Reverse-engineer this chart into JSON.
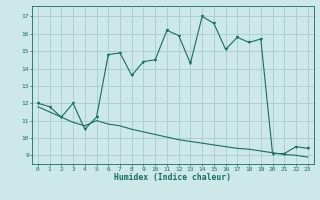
{
  "xlabel": "Humidex (Indice chaleur)",
  "ylabel": "",
  "bg_color": "#cce8e8",
  "grid_color": "#aacccc",
  "line_color": "#1a6b60",
  "xlim": [
    -0.5,
    23.5
  ],
  "ylim": [
    8.5,
    17.6
  ],
  "xticks": [
    0,
    1,
    2,
    3,
    4,
    5,
    6,
    7,
    8,
    9,
    10,
    11,
    12,
    13,
    14,
    15,
    16,
    17,
    18,
    19,
    20,
    21,
    22,
    23
  ],
  "yticks": [
    9,
    10,
    11,
    12,
    13,
    14,
    15,
    16,
    17
  ],
  "curve1_x": [
    0,
    1,
    2,
    3,
    4,
    5,
    6,
    7,
    8,
    9,
    10,
    11,
    12,
    13,
    14,
    15,
    16,
    17,
    18,
    19,
    20,
    21,
    22,
    23
  ],
  "curve1_y": [
    12.0,
    11.8,
    11.2,
    12.0,
    10.5,
    11.2,
    14.8,
    14.9,
    13.6,
    14.4,
    14.5,
    16.2,
    15.9,
    14.3,
    17.0,
    16.6,
    15.1,
    15.8,
    15.5,
    15.7,
    9.1,
    9.1,
    9.5,
    9.4
  ],
  "curve2_x": [
    0,
    1,
    2,
    3,
    4,
    5,
    6,
    7,
    8,
    9,
    10,
    11,
    12,
    13,
    14,
    15,
    16,
    17,
    18,
    19,
    20,
    21,
    22,
    23
  ],
  "curve2_y": [
    11.8,
    11.5,
    11.2,
    10.9,
    10.7,
    11.0,
    10.8,
    10.7,
    10.5,
    10.35,
    10.2,
    10.05,
    9.9,
    9.8,
    9.7,
    9.6,
    9.5,
    9.4,
    9.35,
    9.25,
    9.15,
    9.05,
    9.0,
    8.9
  ],
  "tick_fontsize": 4.5,
  "xlabel_fontsize": 5.8,
  "marker_size": 2.0
}
